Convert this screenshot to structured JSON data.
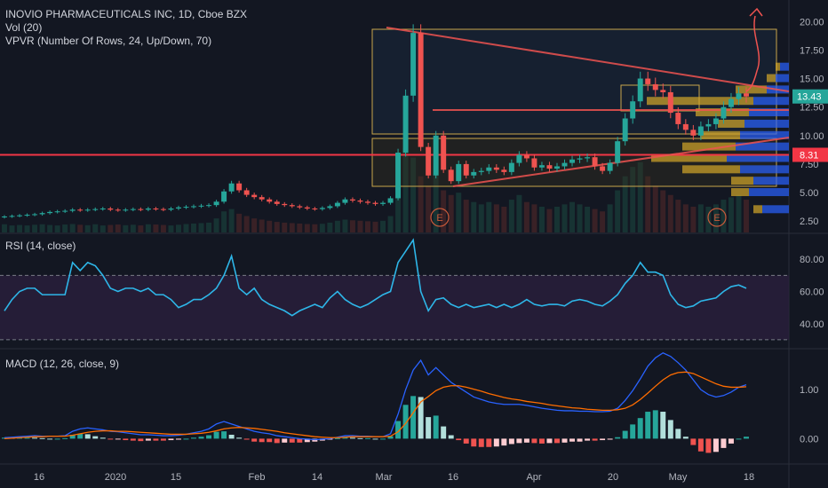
{
  "header": {
    "title": "INOVIO PHARMACEUTICALS INC, 1D, Cboe BZX",
    "vol": "Vol (20)",
    "vpvr": "VPVR (Number Of Rows, 24, Up/Down, 70)"
  },
  "rsi": {
    "label": "RSI (14, close)"
  },
  "macd": {
    "label": "MACD (12, 26, close, 9)"
  },
  "price_badges": {
    "last": "13.43",
    "line": "8.31"
  },
  "earnings": [
    "E",
    "E"
  ],
  "colors": {
    "bg": "#131722",
    "up": "#26a69a",
    "down": "#ef5350",
    "rsi": "#2eb6e8",
    "rsi_band": "#2a1f3d",
    "macd": "#2962ff",
    "signal": "#ff6d00",
    "box": "#c8a64b",
    "trend": "#ef5350",
    "vpvr_up": "#2962ff",
    "vpvr_down": "#d4a82a"
  },
  "chart_data": [
    {
      "type": "candlestick",
      "title": "INOVIO PHARMACEUTICALS INC, 1D, Cboe BZX",
      "ylim": [
        1.5,
        21.5
      ],
      "yticks": [
        "2.50",
        "5.00",
        "7.50",
        "10.00",
        "12.50",
        "15.00",
        "17.50",
        "20.00"
      ],
      "xticks": [
        "16",
        "2020",
        "15",
        "Feb",
        "14",
        "Mar",
        "16",
        "Apr",
        "20",
        "May",
        "18"
      ],
      "horizontal_line": 8.31,
      "last_price": 13.43,
      "closes": [
        2.9,
        2.95,
        3.0,
        3.05,
        3.1,
        3.2,
        3.3,
        3.35,
        3.4,
        3.5,
        3.45,
        3.5,
        3.55,
        3.6,
        3.5,
        3.45,
        3.5,
        3.55,
        3.5,
        3.6,
        3.55,
        3.5,
        3.6,
        3.7,
        3.75,
        3.8,
        3.85,
        3.9,
        4.2,
        5.1,
        5.8,
        5.2,
        4.8,
        4.6,
        4.4,
        4.2,
        4.0,
        3.9,
        3.8,
        3.7,
        3.6,
        3.55,
        3.65,
        3.8,
        4.1,
        4.4,
        4.3,
        4.2,
        4.1,
        4.0,
        4.1,
        4.5,
        8.5,
        13.5,
        19.0,
        9.0,
        6.5,
        10.0,
        7.0,
        6.0,
        7.5,
        6.5,
        6.8,
        6.9,
        7.2,
        7.0,
        6.8,
        7.6,
        8.3,
        8.0,
        7.2,
        7.4,
        7.1,
        7.3,
        7.6,
        7.9,
        8.0,
        8.1,
        7.3,
        6.9,
        7.6,
        9.5,
        11.5,
        13.0,
        15.0,
        14.5,
        14.0,
        13.8,
        12.0,
        11.0,
        10.5,
        10.0,
        10.8,
        11.0,
        11.5,
        12.5,
        13.2,
        13.7,
        13.43
      ],
      "volume": [
        0.35,
        0.3,
        0.32,
        0.3,
        0.33,
        0.35,
        0.32,
        0.3,
        0.34,
        0.36,
        0.33,
        0.31,
        0.35,
        0.3,
        0.32,
        0.34,
        0.31,
        0.33,
        0.3,
        0.35,
        0.34,
        0.32,
        0.3,
        0.33,
        0.36,
        0.38,
        0.4,
        0.42,
        0.6,
        0.9,
        1.0,
        0.8,
        0.7,
        0.6,
        0.55,
        0.5,
        0.45,
        0.42,
        0.4,
        0.38,
        0.36,
        0.35,
        0.37,
        0.42,
        0.5,
        0.55,
        0.52,
        0.5,
        0.48,
        0.46,
        0.5,
        0.7,
        2.5,
        3.6,
        3.2,
        2.4,
        2.0,
        2.6,
        1.8,
        1.6,
        1.7,
        1.4,
        1.3,
        1.2,
        1.3,
        1.2,
        1.1,
        1.4,
        1.6,
        1.3,
        1.2,
        1.1,
        1.0,
        1.1,
        1.2,
        1.3,
        1.2,
        1.1,
        1.0,
        0.9,
        1.2,
        1.8,
        2.4,
        2.8,
        3.0,
        2.4,
        2.0,
        1.8,
        1.6,
        1.4,
        1.2,
        1.1,
        1.2,
        1.1,
        1.2,
        1.4,
        1.5,
        1.6,
        1.4
      ]
    },
    {
      "type": "line",
      "title": "RSI (14, close)",
      "ylim": [
        25,
        95
      ],
      "yticks": [
        "40.00",
        "60.00",
        "80.00"
      ],
      "bands": [
        30,
        70
      ],
      "values": [
        48,
        55,
        60,
        62,
        62,
        58,
        58,
        58,
        58,
        78,
        73,
        78,
        76,
        70,
        62,
        60,
        62,
        62,
        60,
        62,
        58,
        58,
        55,
        50,
        52,
        55,
        55,
        58,
        62,
        70,
        82,
        62,
        58,
        62,
        55,
        52,
        50,
        48,
        45,
        48,
        50,
        52,
        50,
        56,
        60,
        55,
        52,
        50,
        52,
        55,
        58,
        60,
        78,
        85,
        92,
        60,
        48,
        55,
        56,
        52,
        50,
        52,
        50,
        51,
        52,
        50,
        52,
        50,
        52,
        55,
        52,
        51,
        52,
        52,
        51,
        54,
        55,
        54,
        52,
        51,
        54,
        58,
        65,
        70,
        78,
        72,
        72,
        70,
        58,
        52,
        50,
        51,
        54,
        55,
        56,
        60,
        63,
        64,
        62
      ]
    },
    {
      "type": "line",
      "title": "MACD (12, 26, close, 9)",
      "ylim": [
        -0.5,
        1.8
      ],
      "yticks": [
        "0.00",
        "1.00"
      ],
      "series": [
        {
          "values": [
            0.02,
            0.03,
            0.04,
            0.05,
            0.06,
            0.05,
            0.05,
            0.05,
            0.06,
            0.15,
            0.2,
            0.22,
            0.2,
            0.18,
            0.15,
            0.14,
            0.12,
            0.1,
            0.08,
            0.08,
            0.07,
            0.06,
            0.06,
            0.07,
            0.09,
            0.12,
            0.15,
            0.2,
            0.3,
            0.35,
            0.3,
            0.25,
            0.2,
            0.15,
            0.12,
            0.1,
            0.06,
            0.04,
            0.02,
            0.0,
            -0.01,
            -0.02,
            -0.01,
            0.0,
            0.03,
            0.06,
            0.06,
            0.05,
            0.05,
            0.04,
            0.04,
            0.1,
            0.5,
            1.0,
            1.4,
            1.6,
            1.3,
            1.45,
            1.3,
            1.15,
            1.05,
            0.95,
            0.85,
            0.8,
            0.75,
            0.72,
            0.7,
            0.7,
            0.7,
            0.68,
            0.65,
            0.62,
            0.6,
            0.58,
            0.57,
            0.57,
            0.56,
            0.56,
            0.55,
            0.55,
            0.56,
            0.62,
            0.78,
            0.98,
            1.22,
            1.48,
            1.65,
            1.75,
            1.68,
            1.55,
            1.4,
            1.2,
            1.0,
            0.9,
            0.85,
            0.88,
            0.95,
            1.05,
            1.1
          ]
        },
        {
          "values": [
            0.0,
            0.01,
            0.02,
            0.03,
            0.04,
            0.04,
            0.05,
            0.05,
            0.05,
            0.07,
            0.1,
            0.13,
            0.15,
            0.16,
            0.16,
            0.15,
            0.15,
            0.14,
            0.13,
            0.12,
            0.11,
            0.1,
            0.09,
            0.09,
            0.09,
            0.1,
            0.11,
            0.13,
            0.16,
            0.2,
            0.22,
            0.23,
            0.22,
            0.21,
            0.19,
            0.17,
            0.15,
            0.12,
            0.1,
            0.08,
            0.06,
            0.04,
            0.03,
            0.02,
            0.02,
            0.03,
            0.04,
            0.04,
            0.04,
            0.04,
            0.04,
            0.05,
            0.14,
            0.31,
            0.53,
            0.75,
            0.86,
            0.98,
            1.05,
            1.08,
            1.08,
            1.05,
            1.01,
            0.97,
            0.92,
            0.88,
            0.84,
            0.81,
            0.79,
            0.76,
            0.74,
            0.72,
            0.69,
            0.67,
            0.65,
            0.63,
            0.62,
            0.6,
            0.59,
            0.58,
            0.58,
            0.59,
            0.62,
            0.69,
            0.8,
            0.93,
            1.07,
            1.2,
            1.3,
            1.35,
            1.36,
            1.33,
            1.26,
            1.19,
            1.12,
            1.07,
            1.05,
            1.05,
            1.06
          ]
        }
      ]
    }
  ]
}
